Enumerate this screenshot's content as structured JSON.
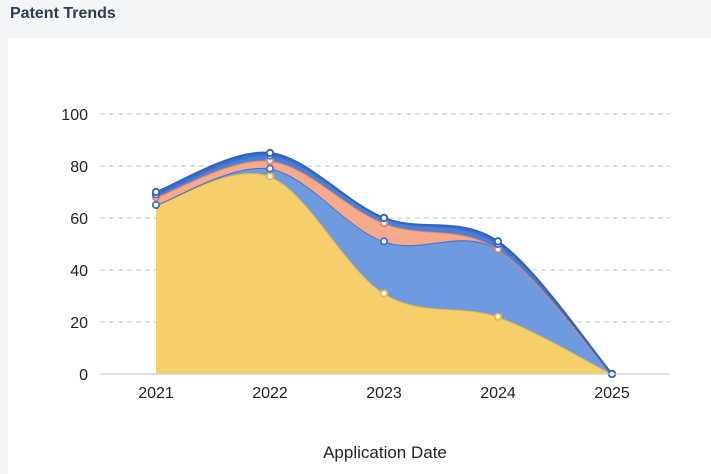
{
  "panel": {
    "title": "Patent Trends"
  },
  "chart_data": {
    "type": "area",
    "stacked": true,
    "title": "",
    "xlabel": "Application Date",
    "ylabel": "",
    "categories": [
      "2021",
      "2022",
      "2023",
      "2024",
      "2025"
    ],
    "ylim": [
      0,
      100
    ],
    "yticks": [
      0,
      20,
      40,
      60,
      80,
      100
    ],
    "grid": true,
    "series": [
      {
        "values": [
          65,
          76,
          31,
          22,
          0
        ],
        "color": "#f6cf6b",
        "line": "#e8b93a"
      },
      {
        "values": [
          0,
          3,
          20,
          26,
          0
        ],
        "color": "#6e9be0",
        "line": "#3d72cf"
      },
      {
        "values": [
          3,
          3,
          7,
          0,
          0
        ],
        "color": "#f7a98c",
        "line": "#f08060"
      },
      {
        "values": [
          1,
          2,
          2,
          2,
          0
        ],
        "color": "#4a80d8",
        "line": "#3d72cf"
      },
      {
        "values": [
          1,
          1,
          0,
          1,
          0
        ],
        "color": "#3a6fc9",
        "line": "#2f63bf"
      }
    ]
  }
}
